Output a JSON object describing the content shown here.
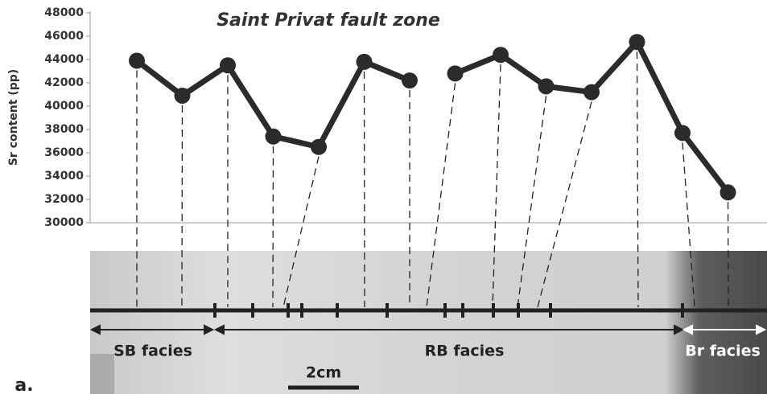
{
  "chart_data": {
    "type": "line",
    "title": "Saint Privat fault zone",
    "y_label": "Sr content (pp)",
    "series": [
      {
        "color": "#2b2b2b",
        "values": [
          43900,
          40900,
          43500,
          37400,
          36500,
          43800,
          42200,
          null,
          null,
          null,
          null,
          null,
          null,
          null
        ]
      },
      {
        "color": "#2b2b2b",
        "values": [
          null,
          null,
          null,
          null,
          null,
          null,
          null,
          42800,
          44400,
          41700,
          41200,
          45500,
          37700,
          32600
        ]
      }
    ],
    "ylim": [
      30000,
      48000
    ],
    "yticks": [
      30000,
      32000,
      34000,
      36000,
      38000,
      40000,
      42000,
      44000,
      46000,
      48000
    ],
    "annotations": [
      "SB facies",
      "RB facies",
      "Br facies",
      "2cm",
      "a."
    ]
  }
}
